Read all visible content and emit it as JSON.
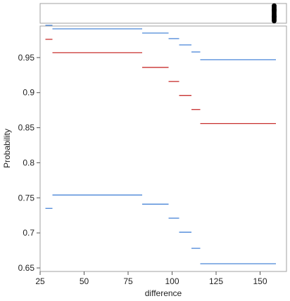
{
  "chart_data": {
    "type": "line",
    "xlabel": "difference",
    "ylabel": "Probability",
    "xlim": [
      25,
      165
    ],
    "ylim": [
      0.645,
      0.995
    ],
    "x_ticks": [
      25,
      50,
      75,
      100,
      125,
      150
    ],
    "y_ticks": [
      0.65,
      0.7,
      0.75,
      0.8,
      0.85,
      0.9,
      0.95
    ],
    "y_tick_labels": [
      "0.65",
      "0.7",
      "0.75",
      "0.8",
      "0.85",
      "0.9",
      "0.95"
    ],
    "grid": false,
    "colors": {
      "blue": "#4a86d8",
      "red": "#c8302f",
      "frame": "#a0a0a0"
    },
    "series": [
      {
        "color": "#4a86d8",
        "segments": [
          [
            28,
            32,
            0.996
          ],
          [
            32,
            83,
            0.991
          ],
          [
            83,
            98,
            0.985
          ],
          [
            98,
            104,
            0.977
          ],
          [
            104,
            111,
            0.968
          ],
          [
            111,
            116,
            0.958
          ],
          [
            116,
            159,
            0.947
          ]
        ]
      },
      {
        "color": "#c8302f",
        "segments": [
          [
            28,
            32,
            0.976
          ],
          [
            32,
            83,
            0.957
          ],
          [
            83,
            98,
            0.936
          ],
          [
            98,
            104,
            0.916
          ],
          [
            104,
            111,
            0.896
          ],
          [
            111,
            116,
            0.876
          ],
          [
            116,
            159,
            0.856
          ]
        ]
      },
      {
        "color": "#4a86d8",
        "segments": [
          [
            28,
            32,
            0.735
          ],
          [
            32,
            83,
            0.754
          ],
          [
            83,
            98,
            0.741
          ],
          [
            98,
            104,
            0.721
          ],
          [
            104,
            111,
            0.701
          ],
          [
            111,
            116,
            0.678
          ],
          [
            116,
            159,
            0.656
          ]
        ]
      }
    ],
    "marginal_points": {
      "x": [
        158,
        158,
        158,
        158,
        158,
        158,
        158,
        158,
        158,
        158,
        158,
        158,
        158,
        158,
        158
      ],
      "jitter": [
        0.05,
        0.12,
        0.2,
        0.28,
        0.35,
        0.42,
        0.5,
        0.58,
        0.65,
        0.72,
        0.8,
        0.88,
        0.95,
        0.3,
        0.7
      ]
    }
  }
}
